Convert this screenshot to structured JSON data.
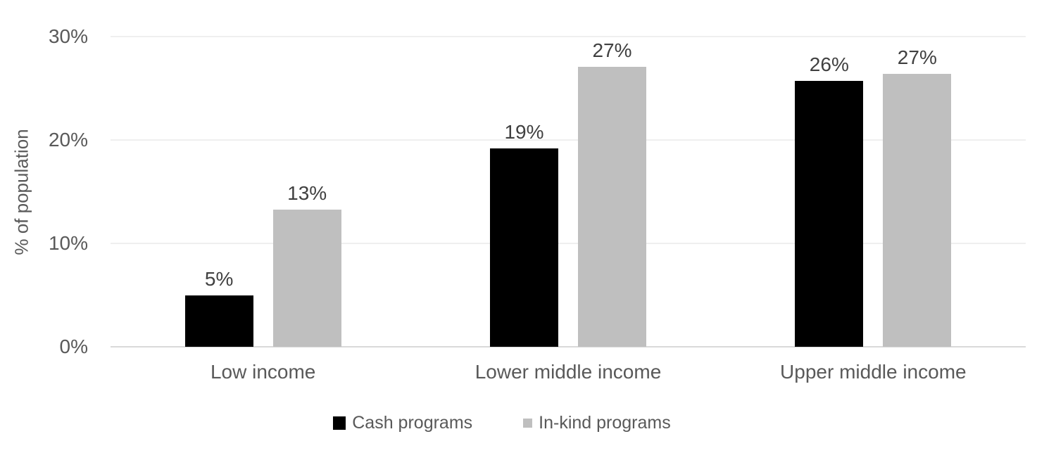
{
  "chart_data": {
    "type": "bar",
    "title": "",
    "ylabel": "% of population",
    "xlabel": "",
    "categories": [
      "Low income",
      "Lower middle income",
      "Upper middle income"
    ],
    "series": [
      {
        "name": "Cash programs",
        "color": "#000000",
        "values": [
          5,
          19,
          26
        ],
        "labels": [
          "5%",
          "19%",
          "26%"
        ],
        "bar_heights_pct": [
          5.0,
          19.2,
          25.7
        ]
      },
      {
        "name": "In-kind programs",
        "color": "#bfbfbf",
        "values": [
          13,
          27,
          27
        ],
        "labels": [
          "13%",
          "27%",
          "27%"
        ],
        "bar_heights_pct": [
          13.3,
          27.1,
          26.4
        ]
      }
    ],
    "y_axis": {
      "min": 0,
      "max": 30,
      "tick_values": [
        0,
        10,
        20,
        30
      ],
      "tick_labels": [
        "0%",
        "10%",
        "20%",
        "30%"
      ]
    },
    "grid": true,
    "legend_position": "bottom"
  },
  "colors": {
    "background": "#ffffff",
    "bar_cash": "#000000",
    "bar_inkind": "#bfbfbf",
    "axis_text": "#595959",
    "data_label_text": "#404040",
    "gridline": "#efefef",
    "axis_line": "#d9d9d9"
  }
}
